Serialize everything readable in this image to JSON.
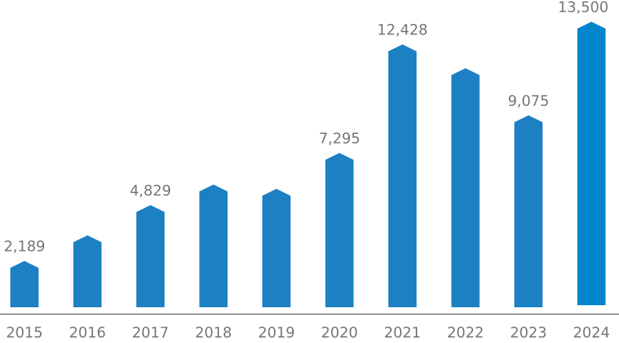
{
  "chart_data": {
    "type": "bar",
    "title": "",
    "xlabel": "",
    "ylabel": "",
    "categories": [
      "2015",
      "2016",
      "2017",
      "2018",
      "2019",
      "2020",
      "2021",
      "2022",
      "2023",
      "2024"
    ],
    "values": [
      2189,
      3400,
      4829,
      5800,
      5600,
      7295,
      12428,
      11300,
      9075,
      13500
    ],
    "data_labels": [
      "2,189",
      "",
      "4,829",
      "",
      "",
      "7,295",
      "12,428",
      "",
      "9,075",
      "13,500"
    ],
    "ylim": [
      0,
      14000
    ],
    "grid": false,
    "colors": {
      "bar": "#1d80c3",
      "highlight_bar": "#0384cc",
      "axis": "#8a8a8a",
      "text": "#767676"
    }
  }
}
